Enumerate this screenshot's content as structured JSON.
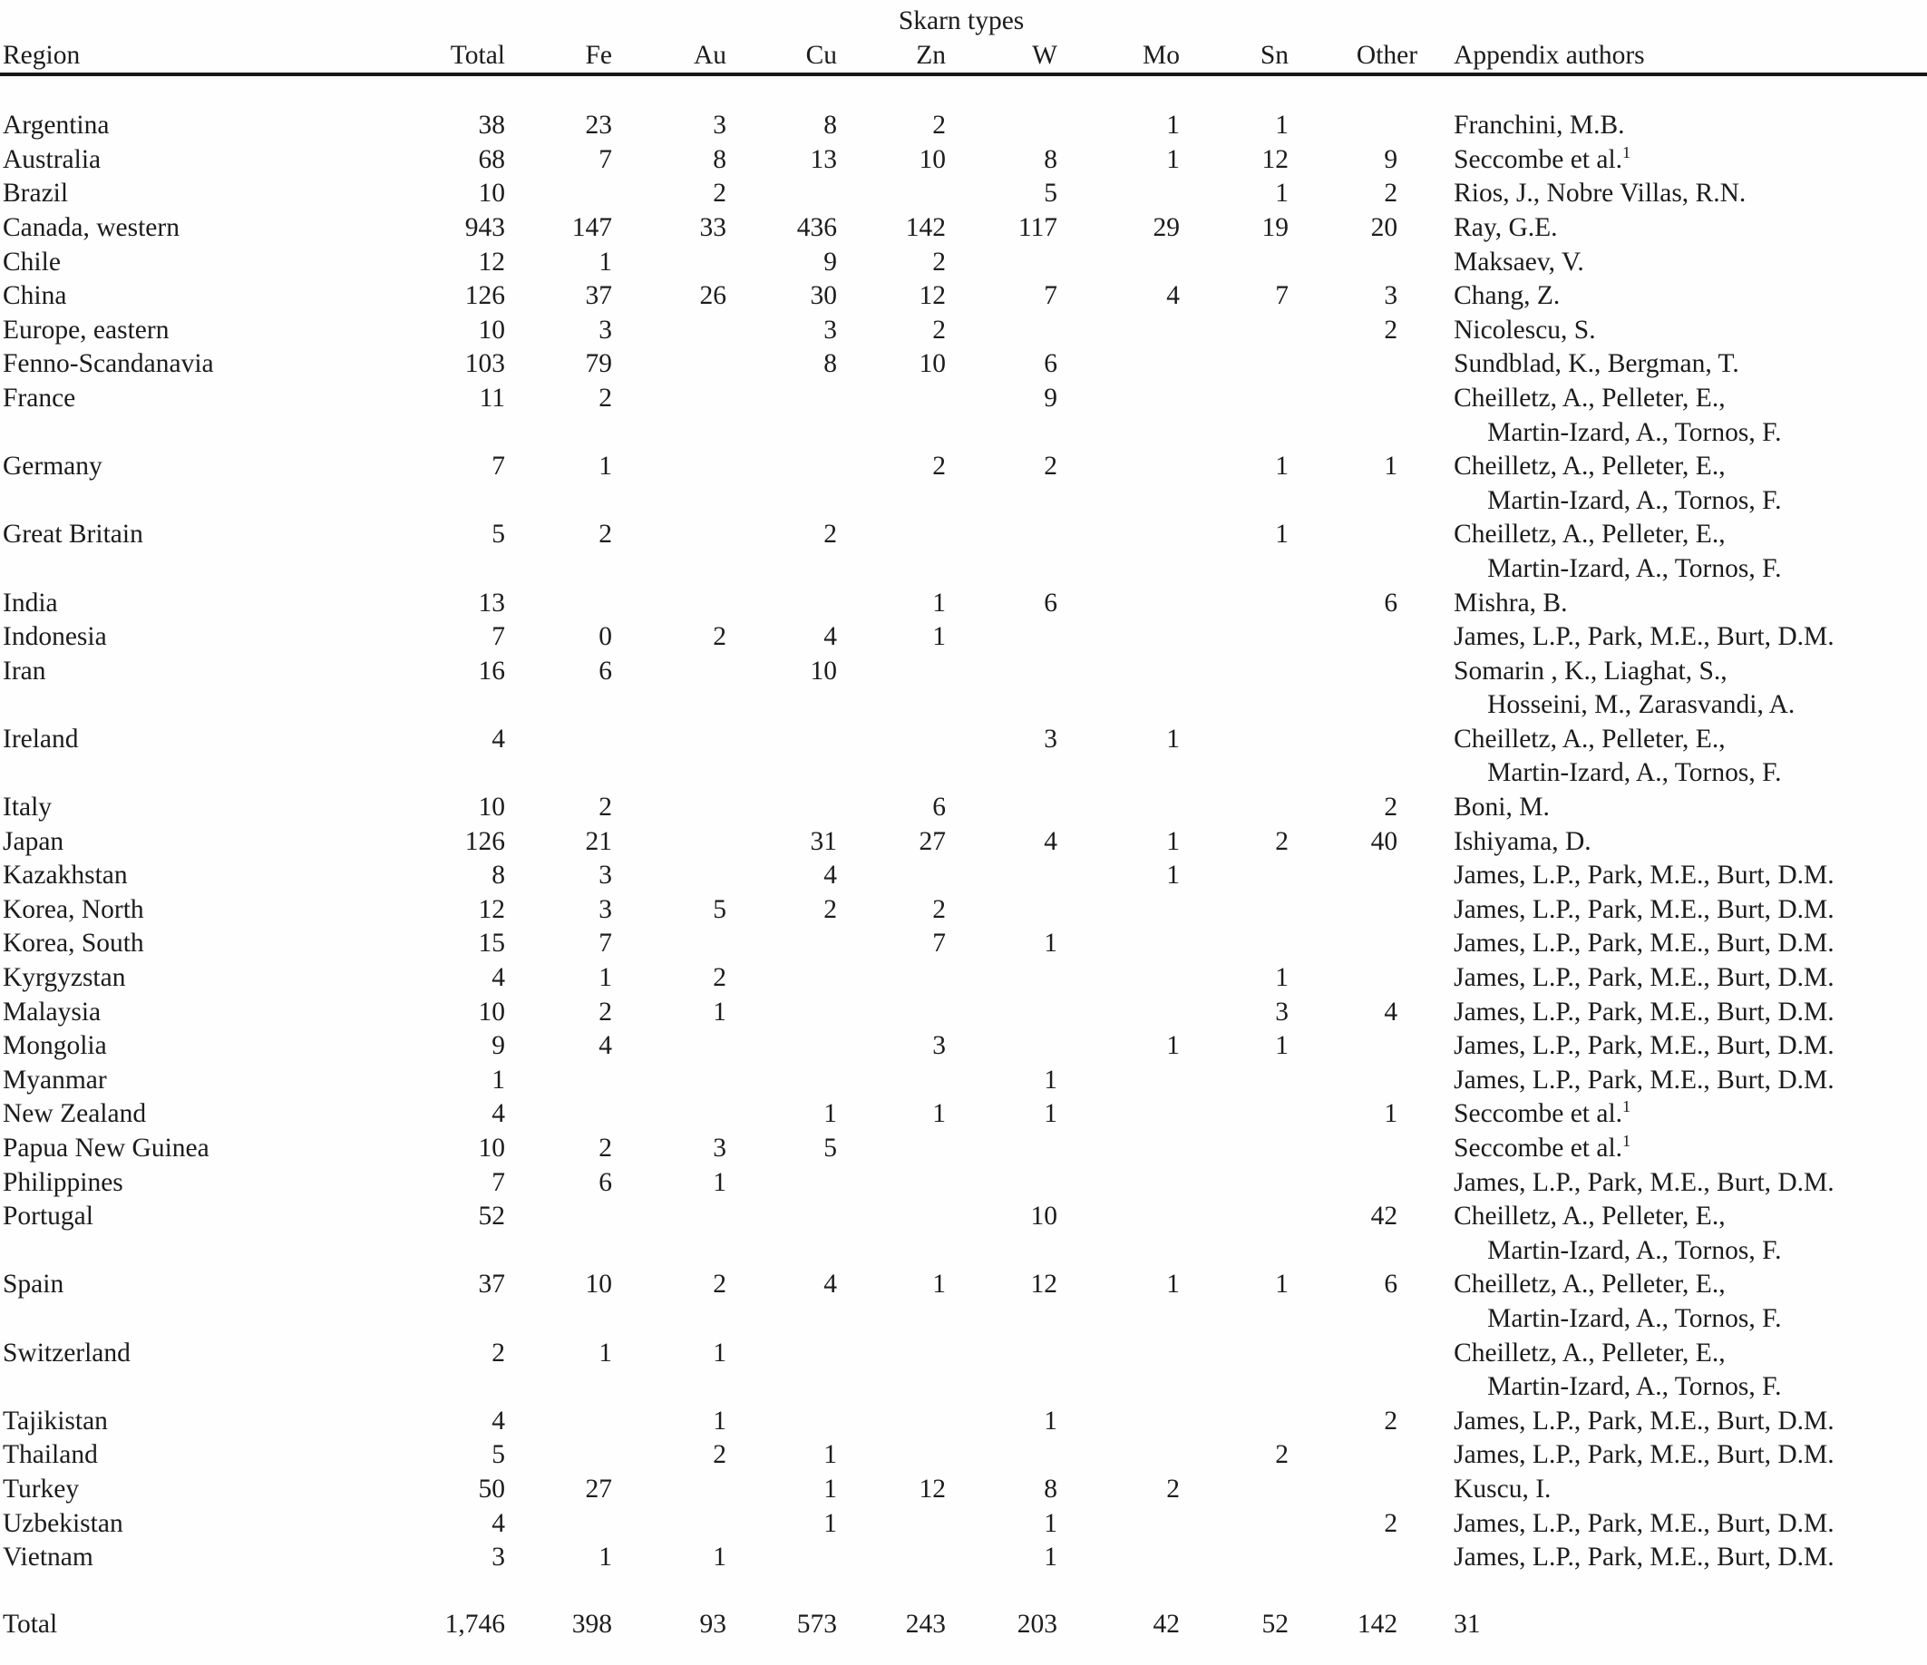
{
  "page": {
    "background_color": "#fefefe",
    "text_color": "#1c1c1c",
    "rule_color": "#161616"
  },
  "table": {
    "group_header": "Skarn types",
    "columns": [
      "Region",
      "Total",
      "Fe",
      "Au",
      "Cu",
      "Zn",
      "W",
      "Mo",
      "Sn",
      "Other",
      "Appendix authors"
    ],
    "rows": [
      {
        "region": "Argentina",
        "total": "38",
        "fe": "23",
        "au": "3",
        "cu": "8",
        "zn": "2",
        "w": "",
        "mo": "1",
        "sn": "1",
        "other": "",
        "authors": [
          "Franchini, M.B."
        ]
      },
      {
        "region": "Australia",
        "total": "68",
        "fe": "7",
        "au": "8",
        "cu": "13",
        "zn": "10",
        "w": "8",
        "mo": "1",
        "sn": "12",
        "other": "9",
        "authors": [
          "Seccombe et al.¹"
        ]
      },
      {
        "region": "Brazil",
        "total": "10",
        "fe": "",
        "au": "2",
        "cu": "",
        "zn": "",
        "w": "5",
        "mo": "",
        "sn": "1",
        "other": "2",
        "authors": [
          "Rios, J., Nobre Villas, R.N."
        ]
      },
      {
        "region": "Canada, western",
        "total": "943",
        "fe": "147",
        "au": "33",
        "cu": "436",
        "zn": "142",
        "w": "117",
        "mo": "29",
        "sn": "19",
        "other": "20",
        "authors": [
          "Ray, G.E."
        ]
      },
      {
        "region": "Chile",
        "total": "12",
        "fe": "1",
        "au": "",
        "cu": "9",
        "zn": "2",
        "w": "",
        "mo": "",
        "sn": "",
        "other": "",
        "authors": [
          "Maksaev, V."
        ]
      },
      {
        "region": "China",
        "total": "126",
        "fe": "37",
        "au": "26",
        "cu": "30",
        "zn": "12",
        "w": "7",
        "mo": "4",
        "sn": "7",
        "other": "3",
        "authors": [
          "Chang, Z."
        ]
      },
      {
        "region": "Europe, eastern",
        "total": "10",
        "fe": "3",
        "au": "",
        "cu": "3",
        "zn": "2",
        "w": "",
        "mo": "",
        "sn": "",
        "other": "2",
        "authors": [
          "Nicolescu, S."
        ]
      },
      {
        "region": "Fenno-Scandanavia",
        "total": "103",
        "fe": "79",
        "au": "",
        "cu": "8",
        "zn": "10",
        "w": "6",
        "mo": "",
        "sn": "",
        "other": "",
        "authors": [
          "Sundblad, K., Bergman, T."
        ]
      },
      {
        "region": "France",
        "total": "11",
        "fe": "2",
        "au": "",
        "cu": "",
        "zn": "",
        "w": "9",
        "mo": "",
        "sn": "",
        "other": "",
        "authors": [
          "Cheilletz, A., Pelleter, E.,",
          "Martin-Izard, A., Tornos, F."
        ]
      },
      {
        "region": "Germany",
        "total": "7",
        "fe": "1",
        "au": "",
        "cu": "",
        "zn": "2",
        "w": "2",
        "mo": "",
        "sn": "1",
        "other": "1",
        "authors": [
          "Cheilletz, A., Pelleter, E.,",
          "Martin-Izard, A., Tornos, F."
        ]
      },
      {
        "region": "Great Britain",
        "total": "5",
        "fe": "2",
        "au": "",
        "cu": "2",
        "zn": "",
        "w": "",
        "mo": "",
        "sn": "1",
        "other": "",
        "authors": [
          "Cheilletz, A., Pelleter, E.,",
          "Martin-Izard, A., Tornos, F."
        ]
      },
      {
        "region": "India",
        "total": "13",
        "fe": "",
        "au": "",
        "cu": "",
        "zn": "1",
        "w": "6",
        "mo": "",
        "sn": "",
        "other": "6",
        "authors": [
          "Mishra, B."
        ]
      },
      {
        "region": "Indonesia",
        "total": "7",
        "fe": "0",
        "au": "2",
        "cu": "4",
        "zn": "1",
        "w": "",
        "mo": "",
        "sn": "",
        "other": "",
        "authors": [
          "James, L.P., Park, M.E., Burt, D.M."
        ]
      },
      {
        "region": "Iran",
        "total": "16",
        "fe": "6",
        "au": "",
        "cu": "10",
        "zn": "",
        "w": "",
        "mo": "",
        "sn": "",
        "other": "",
        "authors": [
          "Somarin , K., Liaghat, S.,",
          "Hosseini, M., Zarasvandi, A."
        ]
      },
      {
        "region": "Ireland",
        "total": "4",
        "fe": "",
        "au": "",
        "cu": "",
        "zn": "",
        "w": "3",
        "mo": "1",
        "sn": "",
        "other": "",
        "authors": [
          "Cheilletz, A., Pelleter, E.,",
          "Martin-Izard, A., Tornos, F."
        ]
      },
      {
        "region": "Italy",
        "total": "10",
        "fe": "2",
        "au": "",
        "cu": "",
        "zn": "6",
        "w": "",
        "mo": "",
        "sn": "",
        "other": "2",
        "authors": [
          "Boni, M."
        ]
      },
      {
        "region": "Japan",
        "total": "126",
        "fe": "21",
        "au": "",
        "cu": "31",
        "zn": "27",
        "w": "4",
        "mo": "1",
        "sn": "2",
        "other": "40",
        "authors": [
          "Ishiyama, D."
        ]
      },
      {
        "region": "Kazakhstan",
        "total": "8",
        "fe": "3",
        "au": "",
        "cu": "4",
        "zn": "",
        "w": "",
        "mo": "1",
        "sn": "",
        "other": "",
        "authors": [
          "James, L.P., Park, M.E., Burt, D.M."
        ]
      },
      {
        "region": "Korea, North",
        "total": "12",
        "fe": "3",
        "au": "5",
        "cu": "2",
        "zn": "2",
        "w": "",
        "mo": "",
        "sn": "",
        "other": "",
        "authors": [
          "James, L.P., Park, M.E., Burt, D.M."
        ]
      },
      {
        "region": "Korea, South",
        "total": "15",
        "fe": "7",
        "au": "",
        "cu": "",
        "zn": "7",
        "w": "1",
        "mo": "",
        "sn": "",
        "other": "",
        "authors": [
          "James, L.P., Park, M.E., Burt, D.M."
        ]
      },
      {
        "region": "Kyrgyzstan",
        "total": "4",
        "fe": "1",
        "au": "2",
        "cu": "",
        "zn": "",
        "w": "",
        "mo": "",
        "sn": "1",
        "other": "",
        "authors": [
          "James, L.P., Park, M.E., Burt, D.M."
        ]
      },
      {
        "region": "Malaysia",
        "total": "10",
        "fe": "2",
        "au": "1",
        "cu": "",
        "zn": "",
        "w": "",
        "mo": "",
        "sn": "3",
        "other": "4",
        "authors": [
          "James, L.P., Park, M.E., Burt, D.M."
        ]
      },
      {
        "region": "Mongolia",
        "total": "9",
        "fe": "4",
        "au": "",
        "cu": "",
        "zn": "3",
        "w": "",
        "mo": "1",
        "sn": "1",
        "other": "",
        "authors": [
          "James, L.P., Park, M.E., Burt, D.M."
        ]
      },
      {
        "region": "Myanmar",
        "total": "1",
        "fe": "",
        "au": "",
        "cu": "",
        "zn": "",
        "w": "1",
        "mo": "",
        "sn": "",
        "other": "",
        "authors": [
          "James, L.P., Park, M.E., Burt, D.M."
        ]
      },
      {
        "region": "New Zealand",
        "total": "4",
        "fe": "",
        "au": "",
        "cu": "1",
        "zn": "1",
        "w": "1",
        "mo": "",
        "sn": "",
        "other": "1",
        "authors": [
          "Seccombe et al.¹"
        ]
      },
      {
        "region": "Papua New Guinea",
        "total": "10",
        "fe": "2",
        "au": "3",
        "cu": "5",
        "zn": "",
        "w": "",
        "mo": "",
        "sn": "",
        "other": "",
        "authors": [
          "Seccombe et al.¹"
        ]
      },
      {
        "region": "Philippines",
        "total": "7",
        "fe": "6",
        "au": "1",
        "cu": "",
        "zn": "",
        "w": "",
        "mo": "",
        "sn": "",
        "other": "",
        "authors": [
          "James, L.P., Park, M.E., Burt, D.M."
        ]
      },
      {
        "region": "Portugal",
        "total": "52",
        "fe": "",
        "au": "",
        "cu": "",
        "zn": "",
        "w": "10",
        "mo": "",
        "sn": "",
        "other": "42",
        "authors": [
          "Cheilletz, A., Pelleter, E.,",
          "Martin-Izard, A., Tornos, F."
        ]
      },
      {
        "region": "Spain",
        "total": "37",
        "fe": "10",
        "au": "2",
        "cu": "4",
        "zn": "1",
        "w": "12",
        "mo": "1",
        "sn": "1",
        "other": "6",
        "authors": [
          "Cheilletz, A., Pelleter, E.,",
          "Martin-Izard, A., Tornos, F."
        ]
      },
      {
        "region": "Switzerland",
        "total": "2",
        "fe": "1",
        "au": "1",
        "cu": "",
        "zn": "",
        "w": "",
        "mo": "",
        "sn": "",
        "other": "",
        "authors": [
          "Cheilletz, A., Pelleter, E.,",
          "Martin-Izard, A., Tornos, F."
        ]
      },
      {
        "region": "Tajikistan",
        "total": "4",
        "fe": "",
        "au": "1",
        "cu": "",
        "zn": "",
        "w": "1",
        "mo": "",
        "sn": "",
        "other": "2",
        "authors": [
          "James, L.P., Park, M.E., Burt, D.M."
        ]
      },
      {
        "region": "Thailand",
        "total": "5",
        "fe": "",
        "au": "2",
        "cu": "1",
        "zn": "",
        "w": "",
        "mo": "",
        "sn": "2",
        "other": "",
        "authors": [
          "James, L.P., Park, M.E., Burt, D.M."
        ]
      },
      {
        "region": "Turkey",
        "total": "50",
        "fe": "27",
        "au": "",
        "cu": "1",
        "zn": "12",
        "w": "8",
        "mo": "2",
        "sn": "",
        "other": "",
        "authors": [
          "Kuscu, I."
        ]
      },
      {
        "region": "Uzbekistan",
        "total": "4",
        "fe": "",
        "au": "",
        "cu": "1",
        "zn": "",
        "w": "1",
        "mo": "",
        "sn": "",
        "other": "2",
        "authors": [
          "James, L.P., Park, M.E., Burt, D.M."
        ]
      },
      {
        "region": "Vietnam",
        "total": "3",
        "fe": "1",
        "au": "1",
        "cu": "",
        "zn": "",
        "w": "1",
        "mo": "",
        "sn": "",
        "other": "",
        "authors": [
          "James, L.P., Park, M.E., Burt, D.M."
        ]
      }
    ],
    "total_row": {
      "region": "Total",
      "total": "1,746",
      "fe": "398",
      "au": "93",
      "cu": "573",
      "zn": "243",
      "w": "203",
      "mo": "42",
      "sn": "52",
      "other": "142",
      "authors": [
        "31"
      ]
    }
  }
}
